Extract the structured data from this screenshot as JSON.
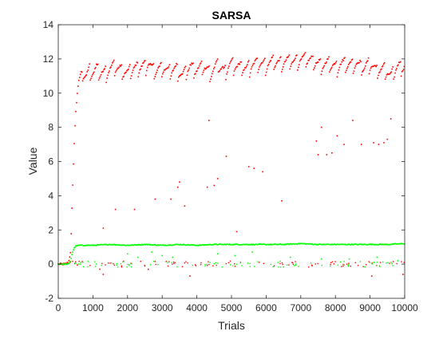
{
  "chart_data": {
    "type": "scatter",
    "title": "SARSA",
    "xlabel": "Trials",
    "ylabel": "Value",
    "xlim": [
      0,
      10000
    ],
    "ylim": [
      -2,
      14
    ],
    "xticks": [
      0,
      1000,
      2000,
      3000,
      4000,
      5000,
      6000,
      7000,
      8000,
      9000,
      10000
    ],
    "yticks": [
      -2,
      0,
      2,
      4,
      6,
      8,
      10,
      12,
      14
    ],
    "grid": false,
    "legend": "none",
    "colors": {
      "series_red": "#ff0000",
      "series_green": "#00ff00",
      "axes": "#262626"
    },
    "series": [
      {
        "color": "#ff0000",
        "description_points": {
          "x": [
            0,
            100,
            200,
            300,
            360,
            400,
            450,
            500,
            550,
            600,
            650,
            700,
            800,
            900,
            1000,
            1100,
            1200,
            1400,
            1600,
            1800,
            2000,
            2200,
            2400,
            2600,
            2800,
            3000,
            3200,
            3400,
            3600,
            3800,
            4000,
            4200,
            4400,
            4600,
            4800,
            5000,
            5200,
            5400,
            5600,
            5800,
            6000,
            6200,
            6400,
            6600,
            6800,
            7000,
            7200,
            7400,
            7600,
            7800,
            8000,
            8200,
            8400,
            8600,
            8800,
            9000,
            9200,
            9400,
            9600,
            9800,
            10000
          ],
          "y": [
            0.0,
            0.0,
            0.0,
            0.1,
            0.8,
            3.5,
            6.5,
            8.8,
            10.0,
            10.8,
            11.2,
            11.3,
            11.0,
            11.4,
            11.2,
            11.5,
            11.2,
            11.3,
            11.6,
            11.4,
            11.2,
            11.5,
            11.6,
            11.8,
            11.3,
            11.6,
            11.3,
            11.5,
            11.1,
            11.6,
            11.4,
            11.6,
            11.2,
            11.7,
            11.3,
            11.8,
            11.6,
            11.5,
            11.7,
            11.8,
            11.7,
            11.9,
            11.8,
            11.9,
            11.9,
            12.0,
            12.0,
            11.9,
            11.7,
            11.8,
            11.6,
            11.8,
            11.7,
            11.8,
            11.5,
            11.8,
            11.3,
            11.5,
            11.0,
            11.6,
            11.6
          ],
          "outliers": [
            [
              1300,
              2.1
            ],
            [
              1650,
              3.2
            ],
            [
              2200,
              3.2
            ],
            [
              2800,
              3.8
            ],
            [
              3250,
              3.8
            ],
            [
              3450,
              4.5
            ],
            [
              3500,
              4.8
            ],
            [
              3650,
              3.4
            ],
            [
              4300,
              4.5
            ],
            [
              4350,
              8.4
            ],
            [
              4500,
              4.6
            ],
            [
              4600,
              5.0
            ],
            [
              4850,
              6.3
            ],
            [
              5150,
              1.9
            ],
            [
              5500,
              5.7
            ],
            [
              5650,
              5.6
            ],
            [
              5900,
              5.4
            ],
            [
              6450,
              3.7
            ],
            [
              7450,
              7.2
            ],
            [
              7500,
              6.4
            ],
            [
              7600,
              8.0
            ],
            [
              7750,
              6.4
            ],
            [
              7900,
              6.5
            ],
            [
              8050,
              7.5
            ],
            [
              8250,
              7.0
            ],
            [
              8500,
              8.4
            ],
            [
              8750,
              7.0
            ],
            [
              9100,
              7.1
            ],
            [
              9250,
              7.0
            ],
            [
              9400,
              7.1
            ],
            [
              9500,
              7.3
            ],
            [
              9600,
              8.5
            ],
            [
              1200,
              -0.3
            ],
            [
              1300,
              -0.6
            ],
            [
              2600,
              -0.3
            ],
            [
              3800,
              -0.7
            ],
            [
              9050,
              -0.7
            ],
            [
              9950,
              -0.6
            ]
          ]
        }
      },
      {
        "color": "#00ff00",
        "description_points": {
          "x": [
            0,
            100,
            200,
            300,
            360,
            400,
            450,
            500,
            600,
            800,
            1000,
            1500,
            2000,
            2500,
            3000,
            3500,
            4000,
            4500,
            5000,
            5500,
            6000,
            6500,
            7000,
            7500,
            8000,
            8500,
            9000,
            9500,
            10000
          ],
          "y": [
            0.0,
            0.0,
            0.0,
            0.0,
            0.2,
            0.6,
            0.9,
            1.05,
            1.1,
            1.1,
            1.1,
            1.15,
            1.1,
            1.15,
            1.1,
            1.15,
            1.1,
            1.15,
            1.15,
            1.15,
            1.15,
            1.15,
            1.2,
            1.15,
            1.15,
            1.15,
            1.15,
            1.15,
            1.2
          ],
          "outliers": [
            [
              2000,
              0.6
            ],
            [
              2300,
              0.4
            ],
            [
              2700,
              0.7
            ],
            [
              3000,
              0.5
            ],
            [
              3300,
              0.4
            ],
            [
              4600,
              0.6
            ],
            [
              5100,
              0.5
            ],
            [
              5600,
              0.7
            ],
            [
              6700,
              0.4
            ],
            [
              7600,
              0.3
            ],
            [
              8400,
              0.3
            ],
            [
              9200,
              0.4
            ],
            [
              9800,
              0.2
            ]
          ]
        }
      }
    ]
  }
}
